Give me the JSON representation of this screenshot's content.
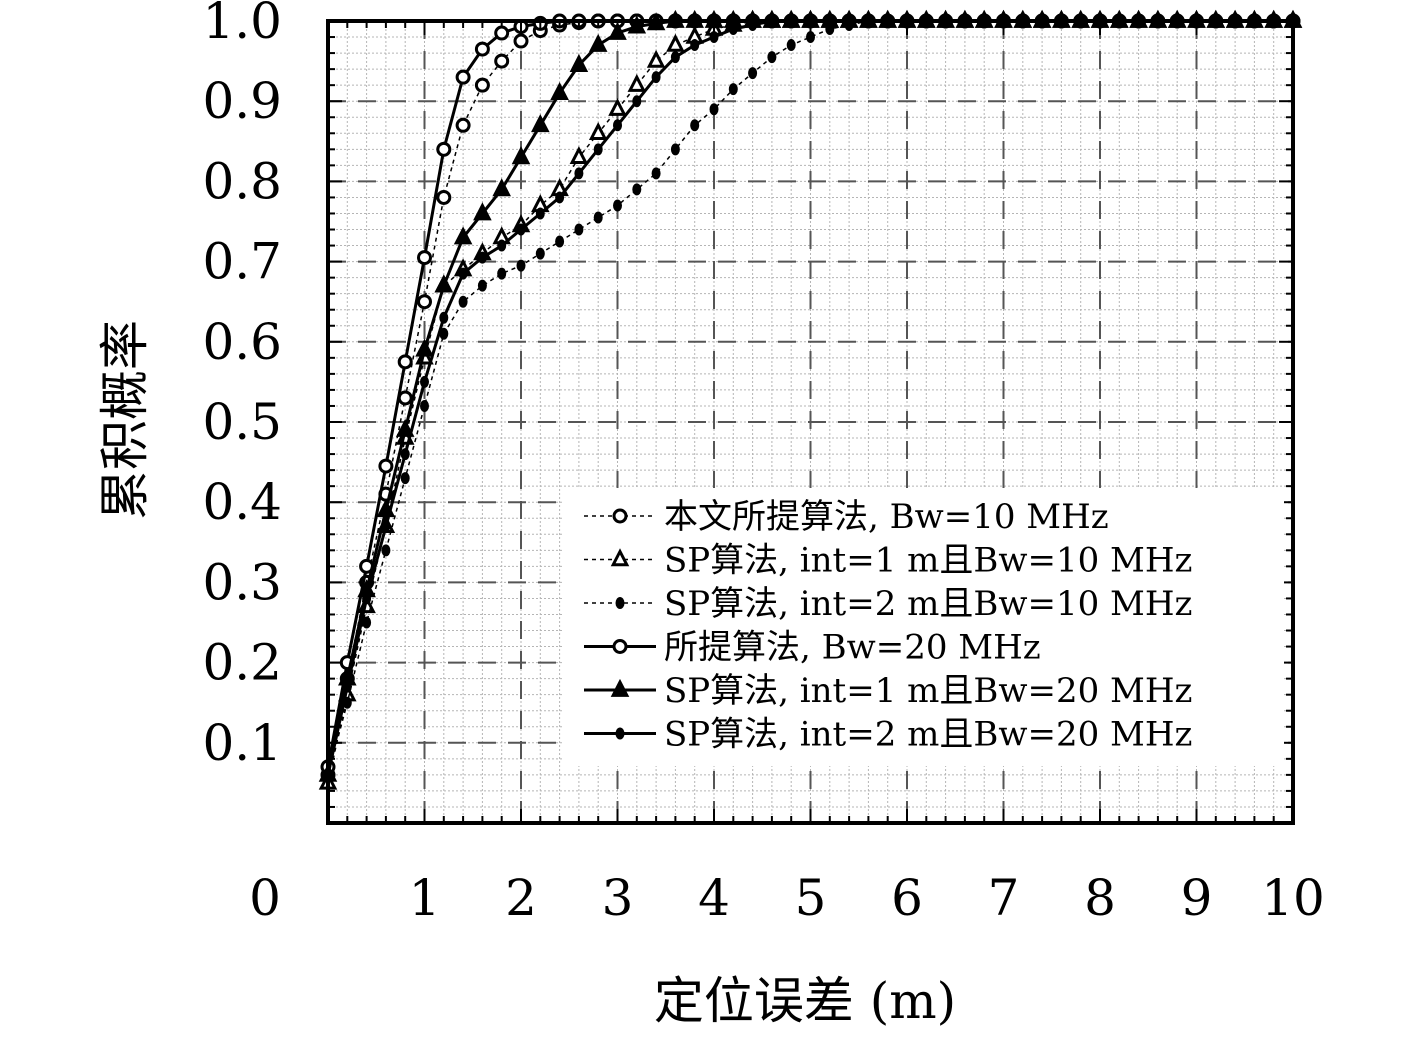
{
  "chart_data": {
    "type": "line",
    "xlabel": "定位误差 (m)",
    "ylabel": "累积概率",
    "xlim": [
      0,
      10
    ],
    "ylim": [
      0,
      1.0
    ],
    "x_ticks": [
      "0",
      "1",
      "2",
      "3",
      "4",
      "5",
      "6",
      "7",
      "8",
      "9",
      "10"
    ],
    "y_ticks": [
      "0.1",
      "0.2",
      "0.3",
      "0.4",
      "0.5",
      "0.6",
      "0.7",
      "0.8",
      "0.9",
      "1.0"
    ],
    "grid": true,
    "legend_position": "bottom-right",
    "series": [
      {
        "name": "本文所提算法, Bw=10 MHz",
        "line": "dashed",
        "marker": "circle",
        "x": [
          0,
          0.2,
          0.4,
          0.6,
          0.8,
          1.0,
          1.2,
          1.4,
          1.6,
          1.8,
          2.0,
          2.2,
          2.4,
          2.6,
          2.8,
          3.0,
          3.2,
          3.4,
          3.6,
          3.8,
          4.0,
          4.2,
          4.4,
          4.6,
          4.8,
          5.0,
          5.2,
          5.4,
          5.6,
          5.8,
          6.0,
          6.2,
          6.4,
          6.6,
          6.8,
          7.0,
          7.2,
          7.4,
          7.6,
          7.8,
          8.0,
          8.2,
          8.4,
          8.6,
          8.8,
          9.0,
          9.2,
          9.4,
          9.6,
          9.8,
          10.0
        ],
        "y": [
          0.06,
          0.18,
          0.3,
          0.41,
          0.53,
          0.65,
          0.78,
          0.87,
          0.92,
          0.95,
          0.975,
          0.988,
          0.995,
          0.998,
          1.0,
          1.0,
          1.0,
          1.0,
          1.0,
          1.0,
          1.0,
          1.0,
          1.0,
          1.0,
          1.0,
          1.0,
          1.0,
          1.0,
          1.0,
          1.0,
          1.0,
          1.0,
          1.0,
          1.0,
          1.0,
          1.0,
          1.0,
          1.0,
          1.0,
          1.0,
          1.0,
          1.0,
          1.0,
          1.0,
          1.0,
          1.0,
          1.0,
          1.0,
          1.0,
          1.0,
          1.0
        ]
      },
      {
        "name": "SP算法, int=1 m且Bw=10 MHz",
        "line": "dashed",
        "marker": "triangle-open",
        "x": [
          0,
          0.2,
          0.4,
          0.6,
          0.8,
          1.0,
          1.2,
          1.4,
          1.6,
          1.8,
          2.0,
          2.2,
          2.4,
          2.6,
          2.8,
          3.0,
          3.2,
          3.4,
          3.6,
          3.8,
          4.0,
          4.2,
          4.4,
          4.6,
          4.8,
          5.0,
          5.2,
          5.4,
          5.6,
          5.8,
          6.0,
          6.2,
          6.4,
          6.6,
          6.8,
          7.0,
          7.2,
          7.4,
          7.6,
          7.8,
          8.0,
          8.2,
          8.4,
          8.6,
          8.8,
          9.0,
          9.2,
          9.4,
          9.6,
          9.8,
          10.0
        ],
        "y": [
          0.05,
          0.16,
          0.27,
          0.37,
          0.48,
          0.58,
          0.67,
          0.69,
          0.71,
          0.73,
          0.745,
          0.77,
          0.79,
          0.83,
          0.86,
          0.89,
          0.92,
          0.95,
          0.97,
          0.98,
          0.99,
          0.995,
          1.0,
          1.0,
          1.0,
          1.0,
          1.0,
          1.0,
          1.0,
          1.0,
          1.0,
          1.0,
          1.0,
          1.0,
          1.0,
          1.0,
          1.0,
          1.0,
          1.0,
          1.0,
          1.0,
          1.0,
          1.0,
          1.0,
          1.0,
          1.0,
          1.0,
          1.0,
          1.0,
          1.0,
          1.0
        ]
      },
      {
        "name": "SP算法, int=2 m且Bw=10 MHz",
        "line": "dashed",
        "marker": "dot",
        "x": [
          0,
          0.2,
          0.4,
          0.6,
          0.8,
          1.0,
          1.2,
          1.4,
          1.6,
          1.8,
          2.0,
          2.2,
          2.4,
          2.6,
          2.8,
          3.0,
          3.2,
          3.4,
          3.6,
          3.8,
          4.0,
          4.2,
          4.4,
          4.6,
          4.8,
          5.0,
          5.2,
          5.4,
          5.6,
          5.8,
          6.0,
          6.2,
          6.4,
          6.6,
          6.8,
          7.0,
          7.2,
          7.4,
          7.6,
          7.8,
          8.0,
          8.2,
          8.4,
          8.6,
          8.8,
          9.0,
          9.2,
          9.4,
          9.6,
          9.8,
          10.0
        ],
        "y": [
          0.06,
          0.15,
          0.25,
          0.34,
          0.43,
          0.52,
          0.61,
          0.65,
          0.67,
          0.685,
          0.695,
          0.71,
          0.725,
          0.74,
          0.755,
          0.77,
          0.79,
          0.81,
          0.84,
          0.87,
          0.89,
          0.915,
          0.935,
          0.955,
          0.97,
          0.98,
          0.99,
          0.995,
          1.0,
          1.0,
          1.0,
          1.0,
          1.0,
          1.0,
          1.0,
          1.0,
          1.0,
          1.0,
          1.0,
          1.0,
          1.0,
          1.0,
          1.0,
          1.0,
          1.0,
          1.0,
          1.0,
          1.0,
          1.0,
          1.0,
          1.0
        ]
      },
      {
        "name": "所提算法, Bw=20 MHz",
        "line": "solid",
        "marker": "circle",
        "x": [
          0,
          0.2,
          0.4,
          0.6,
          0.8,
          1.0,
          1.2,
          1.4,
          1.6,
          1.8,
          2.0,
          2.2,
          2.4,
          2.6,
          2.8,
          3.0,
          3.2,
          3.4,
          3.6,
          3.8,
          4.0,
          4.2,
          4.4,
          4.6,
          4.8,
          5.0,
          5.2,
          5.4,
          5.6,
          5.8,
          6.0,
          6.2,
          6.4,
          6.6,
          6.8,
          7.0,
          7.2,
          7.4,
          7.6,
          7.8,
          8.0,
          8.2,
          8.4,
          8.6,
          8.8,
          9.0,
          9.2,
          9.4,
          9.6,
          9.8,
          10.0
        ],
        "y": [
          0.07,
          0.2,
          0.32,
          0.445,
          0.575,
          0.705,
          0.84,
          0.93,
          0.965,
          0.985,
          0.993,
          0.997,
          1.0,
          1.0,
          1.0,
          1.0,
          1.0,
          1.0,
          1.0,
          1.0,
          1.0,
          1.0,
          1.0,
          1.0,
          1.0,
          1.0,
          1.0,
          1.0,
          1.0,
          1.0,
          1.0,
          1.0,
          1.0,
          1.0,
          1.0,
          1.0,
          1.0,
          1.0,
          1.0,
          1.0,
          1.0,
          1.0,
          1.0,
          1.0,
          1.0,
          1.0,
          1.0,
          1.0,
          1.0,
          1.0,
          1.0
        ]
      },
      {
        "name": "SP算法, int=1 m且Bw=20 MHz",
        "line": "solid",
        "marker": "triangle-filled",
        "x": [
          0,
          0.2,
          0.4,
          0.6,
          0.8,
          1.0,
          1.2,
          1.4,
          1.6,
          1.8,
          2.0,
          2.2,
          2.4,
          2.6,
          2.8,
          3.0,
          3.2,
          3.4,
          3.6,
          3.8,
          4.0,
          4.2,
          4.4,
          4.6,
          4.8,
          5.0,
          5.2,
          5.4,
          5.6,
          5.8,
          6.0,
          6.2,
          6.4,
          6.6,
          6.8,
          7.0,
          7.2,
          7.4,
          7.6,
          7.8,
          8.0,
          8.2,
          8.4,
          8.6,
          8.8,
          9.0,
          9.2,
          9.4,
          9.6,
          9.8,
          10.0
        ],
        "y": [
          0.06,
          0.18,
          0.29,
          0.39,
          0.49,
          0.59,
          0.67,
          0.73,
          0.76,
          0.79,
          0.83,
          0.87,
          0.91,
          0.945,
          0.97,
          0.985,
          0.993,
          0.997,
          1.0,
          1.0,
          1.0,
          1.0,
          1.0,
          1.0,
          1.0,
          1.0,
          1.0,
          1.0,
          1.0,
          1.0,
          1.0,
          1.0,
          1.0,
          1.0,
          1.0,
          1.0,
          1.0,
          1.0,
          1.0,
          1.0,
          1.0,
          1.0,
          1.0,
          1.0,
          1.0,
          1.0,
          1.0,
          1.0,
          1.0,
          1.0,
          1.0
        ]
      },
      {
        "name": "SP算法, int=2 m且Bw=20 MHz",
        "line": "solid",
        "marker": "dot",
        "x": [
          0,
          0.2,
          0.4,
          0.6,
          0.8,
          1.0,
          1.2,
          1.4,
          1.6,
          1.8,
          2.0,
          2.2,
          2.4,
          2.6,
          2.8,
          3.0,
          3.2,
          3.4,
          3.6,
          3.8,
          4.0,
          4.2,
          4.4,
          4.6,
          4.8,
          5.0,
          5.2,
          5.4,
          5.6,
          5.8,
          6.0,
          6.2,
          6.4,
          6.6,
          6.8,
          7.0,
          7.2,
          7.4,
          7.6,
          7.8,
          8.0,
          8.2,
          8.4,
          8.6,
          8.8,
          9.0,
          9.2,
          9.4,
          9.6,
          9.8,
          10.0
        ],
        "y": [
          0.06,
          0.17,
          0.28,
          0.37,
          0.46,
          0.55,
          0.63,
          0.685,
          0.705,
          0.72,
          0.74,
          0.76,
          0.78,
          0.81,
          0.84,
          0.87,
          0.9,
          0.93,
          0.955,
          0.97,
          0.98,
          0.99,
          0.995,
          1.0,
          1.0,
          1.0,
          1.0,
          1.0,
          1.0,
          1.0,
          1.0,
          1.0,
          1.0,
          1.0,
          1.0,
          1.0,
          1.0,
          1.0,
          1.0,
          1.0,
          1.0,
          1.0,
          1.0,
          1.0,
          1.0,
          1.0,
          1.0,
          1.0,
          1.0,
          1.0,
          1.0
        ]
      }
    ]
  }
}
